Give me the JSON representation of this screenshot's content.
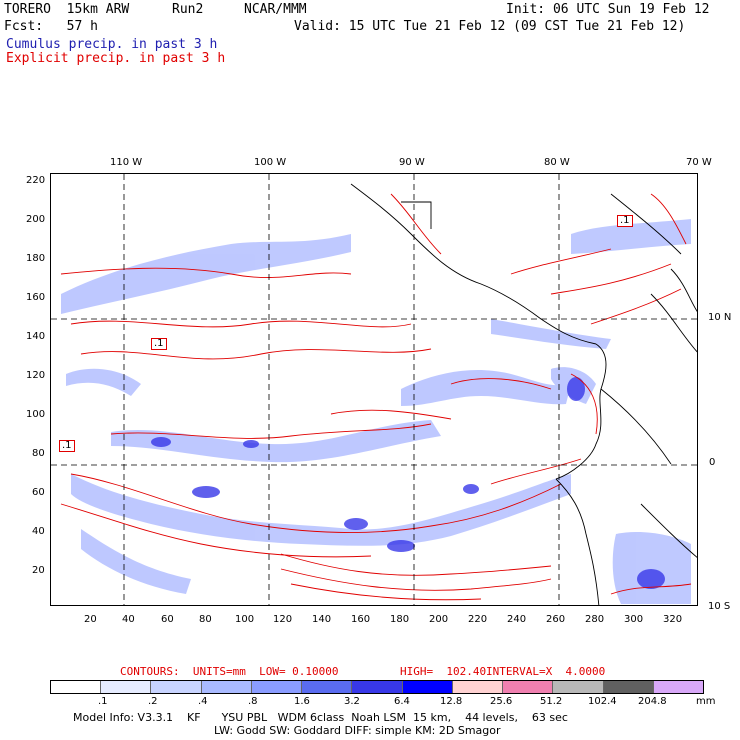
{
  "header": {
    "model": "TORERO  15km ARW",
    "run": "Run2",
    "center": "NCAR/MMM",
    "init": "Init: 06 UTC Sun 19 Feb 12",
    "fcst": "Fcst:   57 h",
    "valid": "Valid: 15 UTC Tue 21 Feb 12 (09 CST Tue 21 Feb 12)",
    "cumulus_label": "Cumulus precip. in past 3 h",
    "explicit_label": "Explicit precip. in past 3 h"
  },
  "colors": {
    "cumulus": "#1f1fb0",
    "explicit": "#e00000",
    "scale": [
      "#ffffff",
      "#e6ecff",
      "#c8d4ff",
      "#a9baff",
      "#8a9cff",
      "#5a6cf0",
      "#3838e8",
      "#0000ff",
      "#ffd2d2",
      "#f080b0",
      "#b8b8b8",
      "#606060",
      "#d8a8f8"
    ]
  },
  "map": {
    "top_lon_labels": [
      "110 W",
      "100 W",
      "90 W",
      "80 W",
      "70 W"
    ],
    "right_lat_labels": [
      "10 N",
      "0",
      "10 S"
    ],
    "left_ticks": [
      "220",
      "200",
      "180",
      "160",
      "140",
      "120",
      "100",
      "80",
      "60",
      "40",
      "20"
    ],
    "bottom_ticks": [
      "20",
      "40",
      "60",
      "80",
      "100",
      "120",
      "140",
      "160",
      "180",
      "200",
      "220",
      "240",
      "260",
      "280",
      "300",
      "320"
    ],
    "contour_labels": [
      ".1",
      ".1",
      ".1"
    ]
  },
  "legend": {
    "contours_label": "CONTOURS:  UNITS=mm  LOW= 0.10000",
    "high_label": "HIGH=  102.40",
    "interval_label": "INTERVAL=X  4.0000",
    "scale_labels": [
      ".1",
      ".2",
      ".4",
      ".8",
      "1.6",
      "3.2",
      "6.4",
      "12.8",
      "25.6",
      "51.2",
      "102.4",
      "204.8"
    ],
    "units": "mm"
  },
  "footer": {
    "line1": "Model Info: V3.3.1    KF      YSU PBL   WDM 6class  Noah LSM  15 km,    44 levels,    63 sec",
    "line2": "LW: Godd SW: Goddard DIFF: simple KM: 2D Smagor"
  }
}
